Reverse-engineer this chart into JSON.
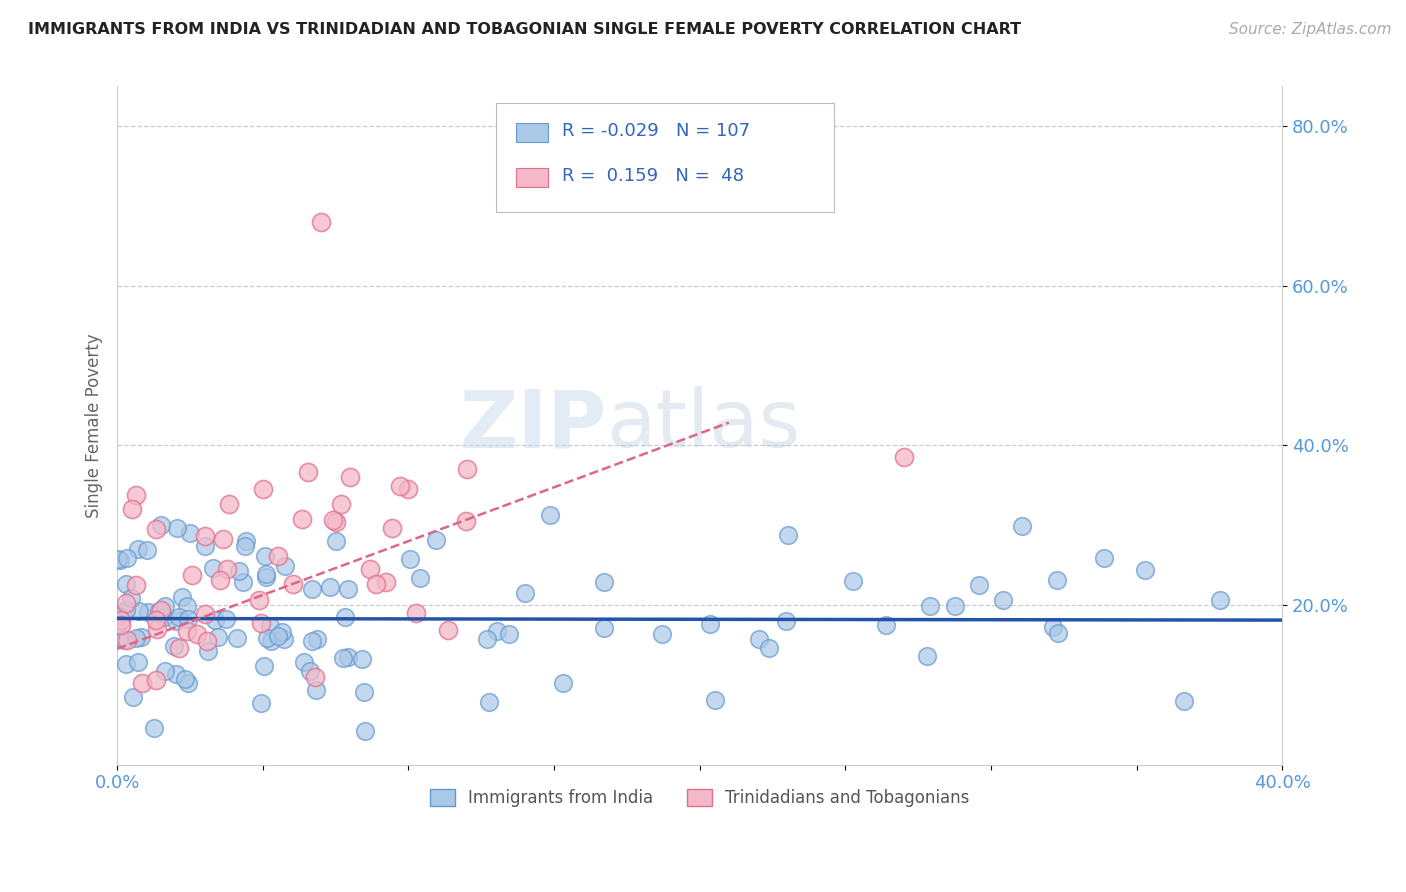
{
  "title": "IMMIGRANTS FROM INDIA VS TRINIDADIAN AND TOBAGONIAN SINGLE FEMALE POVERTY CORRELATION CHART",
  "source": "Source: ZipAtlas.com",
  "ylabel": "Single Female Poverty",
  "xlim": [
    0.0,
    0.4
  ],
  "ylim": [
    0.0,
    0.85
  ],
  "xticks": [
    0.0,
    0.05,
    0.1,
    0.15,
    0.2,
    0.25,
    0.3,
    0.35,
    0.4
  ],
  "xticklabels": [
    "0.0%",
    "",
    "",
    "",
    "",
    "",
    "",
    "",
    "40.0%"
  ],
  "yticks": [
    0.2,
    0.4,
    0.6,
    0.8
  ],
  "yticklabels": [
    "20.0%",
    "40.0%",
    "60.0%",
    "80.0%"
  ],
  "legend1_R": "-0.029",
  "legend1_N": "107",
  "legend2_R": "0.159",
  "legend2_N": "48",
  "series1_face_color": "#aac8e8",
  "series1_edge_color": "#6699cc",
  "series2_face_color": "#f4b8c8",
  "series2_edge_color": "#e07090",
  "trendline1_color": "#2255aa",
  "trendline2_color": "#dd6688",
  "watermark_zip": "ZIP",
  "watermark_atlas": "atlas",
  "background_color": "#ffffff",
  "grid_color": "#cccccc",
  "title_color": "#222222",
  "axis_label_color": "#666666",
  "tick_label_color": "#5599dd",
  "legend_text_color": "#3366bb",
  "seed": 99,
  "n1": 107,
  "n2": 48,
  "trendline1_intercept": 0.183,
  "trendline1_slope": -0.005,
  "trendline2_intercept": 0.145,
  "trendline2_slope": 1.35,
  "trendline2_x_end": 0.21
}
